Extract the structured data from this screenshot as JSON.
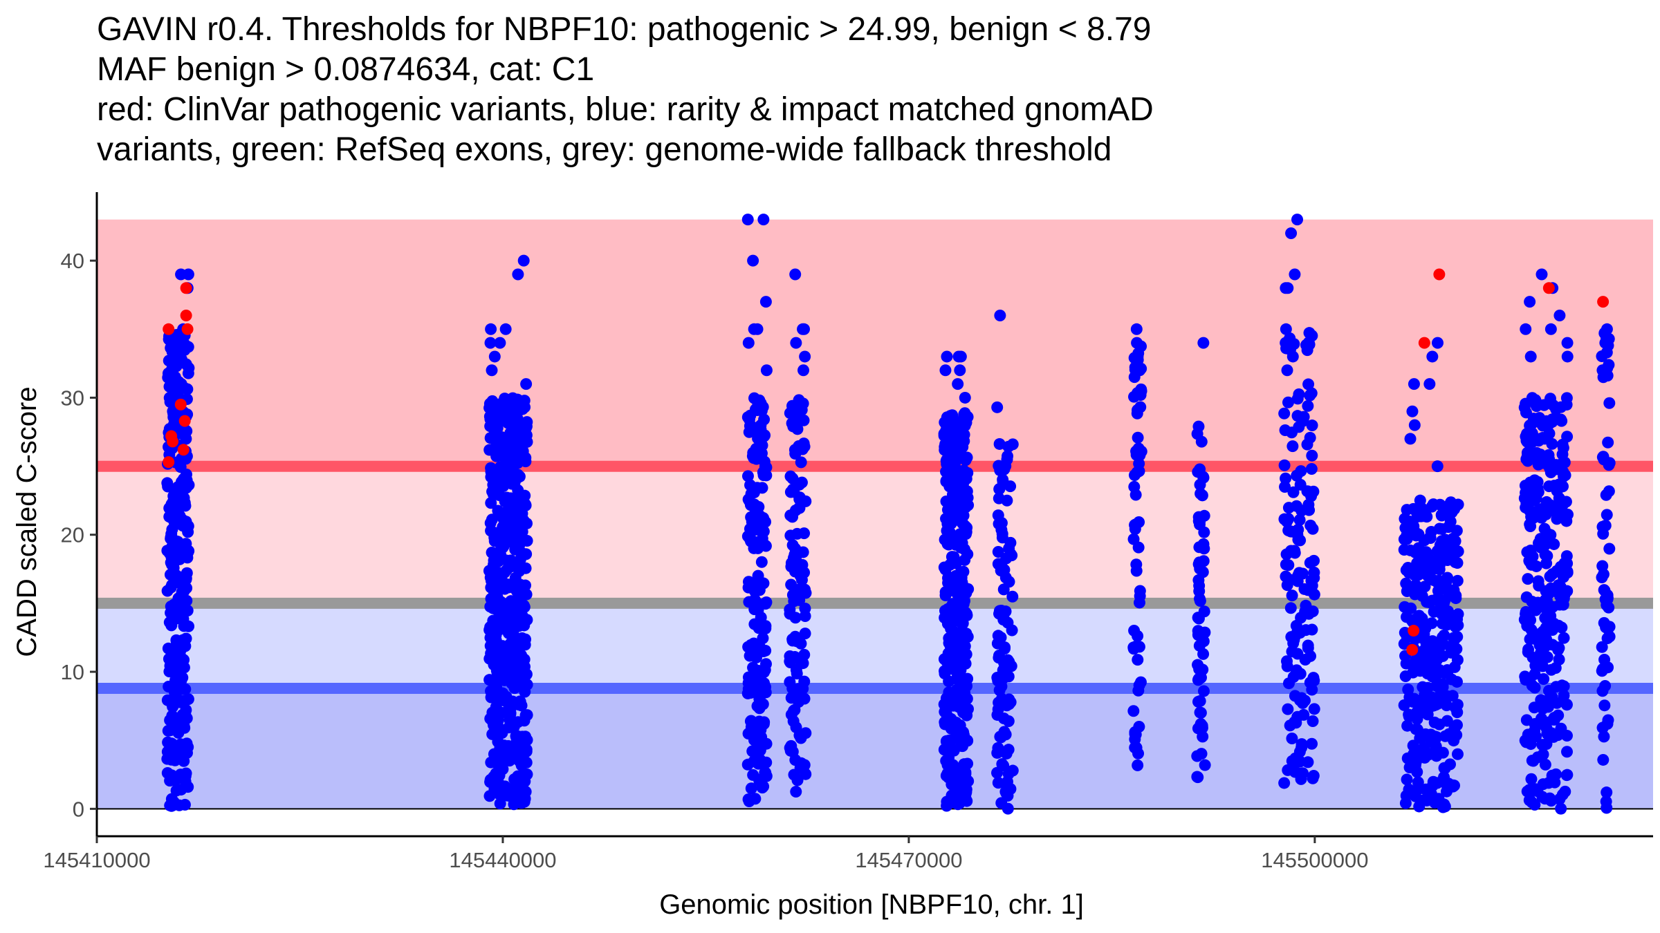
{
  "chart_data": {
    "type": "scatter",
    "title_lines": [
      "GAVIN r0.4. Thresholds for NBPF10: pathogenic > 24.99, benign < 8.79",
      "MAF benign > 0.0874634, cat: C1",
      "red: ClinVar pathogenic variants, blue: rarity & impact matched gnomAD",
      "variants, green: RefSeq exons, grey: genome-wide fallback threshold"
    ],
    "xlabel": "Genomic position [NBPF10, chr. 1]",
    "ylabel": "CADD scaled C-score",
    "xlim": [
      145410000,
      145525000
    ],
    "ylim": [
      -2,
      45
    ],
    "x_ticks": [
      145410000,
      145440000,
      145470000,
      145500000
    ],
    "x_tick_labels": [
      "145410000",
      "145440000",
      "145470000",
      "145500000"
    ],
    "y_ticks": [
      0,
      10,
      20,
      30,
      40
    ],
    "y_tick_labels": [
      "0",
      "10",
      "20",
      "30",
      "40"
    ],
    "bands": [
      {
        "name": "pathogenic-region",
        "ymin": 24.99,
        "ymax": 43,
        "color": "#FFBCC4"
      },
      {
        "name": "pathogenic-to-fallback-region",
        "ymin": 15,
        "ymax": 24.99,
        "color": "#FFD8DE"
      },
      {
        "name": "fallback-to-benign-region",
        "ymin": 8.79,
        "ymax": 15,
        "color": "#D6DAFF"
      },
      {
        "name": "benign-region",
        "ymin": 0,
        "ymax": 8.79,
        "color": "#BABEFB"
      }
    ],
    "threshold_lines": [
      {
        "name": "pathogenic-threshold",
        "y": 24.99,
        "color": "#FF5566"
      },
      {
        "name": "genome-wide-fallback-threshold",
        "y": 15,
        "color": "#999999"
      },
      {
        "name": "benign-threshold",
        "y": 8.79,
        "color": "#5566FF"
      }
    ],
    "series": [
      {
        "name": "rarity & impact matched gnomAD variants",
        "color": "#0000FF",
        "clusters": [
          {
            "x": [
              145415200,
              145416800
            ],
            "ymin": 0,
            "ymax": 35,
            "count": 300,
            "extra": [
              34.5,
              35,
              39,
              39,
              38
            ]
          },
          {
            "x": [
              145439000,
              145441800
            ],
            "ymin": 0,
            "ymax": 30,
            "count": 500,
            "extra": [
              40,
              39,
              35,
              35,
              34,
              34,
              33,
              32,
              31
            ]
          },
          {
            "x": [
              145458100,
              145459500
            ],
            "ymin": 0.5,
            "ymax": 30,
            "count": 180,
            "extra": [
              43,
              43,
              40,
              37,
              35,
              35,
              34,
              32
            ]
          },
          {
            "x": [
              145461200,
              145462400
            ],
            "ymin": 0.5,
            "ymax": 30,
            "count": 120,
            "extra": [
              39,
              35,
              35,
              34,
              33,
              32
            ]
          },
          {
            "x": [
              145472600,
              145474400
            ],
            "ymin": 0,
            "ymax": 29,
            "count": 350,
            "extra": [
              33,
              33,
              33,
              32,
              32,
              31,
              30
            ]
          },
          {
            "x": [
              145476500,
              145477700
            ],
            "ymin": 0,
            "ymax": 27,
            "count": 100,
            "extra": [
              36,
              29.3
            ]
          },
          {
            "x": [
              145486600,
              145487200
            ],
            "ymin": 3,
            "ymax": 35,
            "count": 60,
            "extra": [
              35,
              34,
              33,
              32
            ]
          },
          {
            "x": [
              145491300,
              145491900
            ],
            "ymin": 1.5,
            "ymax": 28,
            "count": 60,
            "extra": [
              34
            ]
          },
          {
            "x": [
              145497700,
              145500000
            ],
            "ymin": 1,
            "ymax": 35,
            "count": 150,
            "extra": [
              42,
              43,
              39,
              38,
              38,
              35,
              34,
              33
            ]
          },
          {
            "x": [
              145506600,
              145510600
            ],
            "ymin": 0,
            "ymax": 22.5,
            "count": 350,
            "extra": [
              34,
              33,
              31,
              31,
              29,
              28,
              27,
              25
            ]
          },
          {
            "x": [
              145515500,
              145518700
            ],
            "ymin": 0,
            "ymax": 30,
            "count": 300,
            "extra": [
              39,
              38,
              37,
              36,
              35,
              35,
              34,
              33,
              33
            ]
          },
          {
            "x": [
              145521200,
              145521800
            ],
            "ymin": 0,
            "ymax": 35,
            "count": 60,
            "extra": [
              35,
              34,
              32
            ]
          }
        ]
      },
      {
        "name": "ClinVar pathogenic variants",
        "color": "#FF0000",
        "points": [
          [
            145415300,
            35
          ],
          [
            145415500,
            27.2
          ],
          [
            145415600,
            26.8
          ],
          [
            145415300,
            25.3
          ],
          [
            145416200,
            29.5
          ],
          [
            145416500,
            28.3
          ],
          [
            145416400,
            26.2
          ],
          [
            145416600,
            38
          ],
          [
            145416600,
            36
          ],
          [
            145416700,
            35
          ],
          [
            145509200,
            39
          ],
          [
            145508100,
            34
          ],
          [
            145507300,
            13
          ],
          [
            145507200,
            11.6
          ],
          [
            145517300,
            38
          ],
          [
            145521300,
            37
          ]
        ]
      }
    ]
  }
}
